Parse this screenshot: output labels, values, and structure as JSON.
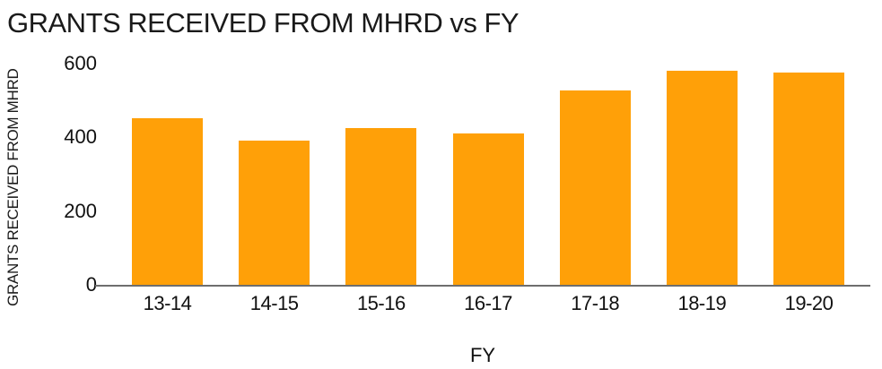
{
  "chart": {
    "colors": {
      "bar": "#FFA008",
      "axis_line": "#6E6E6E",
      "text": "#1A1A1A",
      "background": "#FFFFFF"
    }
  },
  "chart_data": {
    "type": "bar",
    "title": "GRANTS RECEIVED FROM MHRD vs FY",
    "categories": [
      "13-14",
      "14-15",
      "15-16",
      "16-17",
      "17-18",
      "18-19",
      "19-20"
    ],
    "values": [
      450,
      390,
      425,
      410,
      525,
      580,
      575
    ],
    "xlabel": "FY",
    "ylabel": "GRANTS RECEIVED FROM MHRD",
    "ylim": [
      0,
      600
    ],
    "yticks": [
      0,
      200,
      400,
      600
    ],
    "grid": false,
    "legend": false,
    "bar_color": "#FFA008"
  }
}
